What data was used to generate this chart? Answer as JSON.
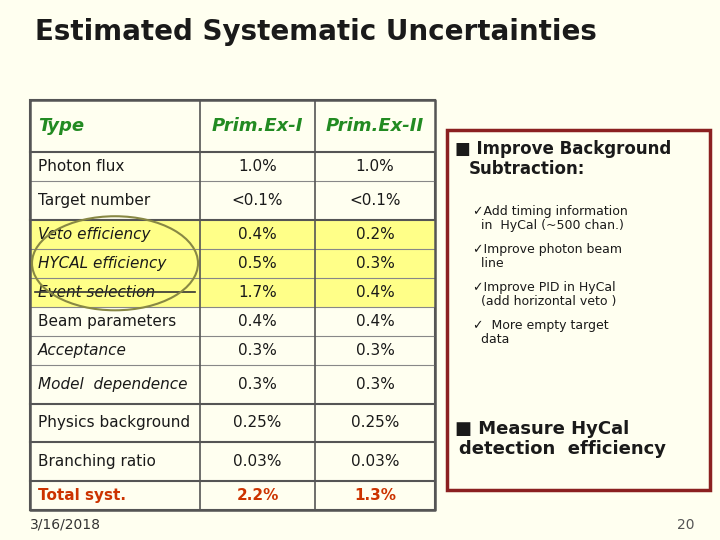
{
  "title": "Estimated Systematic Uncertainties",
  "background_color": "#fffff0",
  "title_color": "#1a1a1a",
  "title_fontsize": 18,
  "table": {
    "headers": [
      "Type",
      "Prim.Ex-I",
      "Prim.Ex-II"
    ],
    "header_color": "#228B22",
    "header_bg": "#fffff0",
    "rows": [
      {
        "type": "Photon flux",
        "ex1": "1.0%",
        "ex2": "1.0%",
        "bg": "#fffff0",
        "strikethrough": false,
        "type_color": "#1a1a1a",
        "italic": false
      },
      {
        "type": "Target number",
        "ex1": "<0.1%",
        "ex2": "<0.1%",
        "bg": "#fffff0",
        "strikethrough": false,
        "type_color": "#1a1a1a",
        "italic": false
      },
      {
        "type": "Veto efficiency",
        "ex1": "0.4%",
        "ex2": "0.2%",
        "bg": "#ffff88",
        "strikethrough": false,
        "type_color": "#1a1a1a",
        "italic": true
      },
      {
        "type": "HYCAL efficiency",
        "ex1": "0.5%",
        "ex2": "0.3%",
        "bg": "#ffff88",
        "strikethrough": false,
        "type_color": "#1a1a1a",
        "italic": true
      },
      {
        "type": "Event selection",
        "ex1": "1.7%",
        "ex2": "0.4%",
        "bg": "#ffff88",
        "strikethrough": true,
        "type_color": "#1a1a1a",
        "italic": true
      },
      {
        "type": "Beam parameters",
        "ex1": "0.4%",
        "ex2": "0.4%",
        "bg": "#fffff0",
        "strikethrough": false,
        "type_color": "#1a1a1a",
        "italic": false
      },
      {
        "type": "Acceptance",
        "ex1": "0.3%",
        "ex2": "0.3%",
        "bg": "#fffff0",
        "strikethrough": false,
        "type_color": "#1a1a1a",
        "italic": true
      },
      {
        "type": "Model  dependence",
        "ex1": "0.3%",
        "ex2": "0.3%",
        "bg": "#fffff0",
        "strikethrough": false,
        "type_color": "#1a1a1a",
        "italic": true
      },
      {
        "type": "Physics background",
        "ex1": "0.25%",
        "ex2": "0.25%",
        "bg": "#fffff0",
        "strikethrough": false,
        "type_color": "#1a1a1a",
        "italic": false
      },
      {
        "type": "Branching ratio",
        "ex1": "0.03%",
        "ex2": "0.03%",
        "bg": "#fffff0",
        "strikethrough": false,
        "type_color": "#1a1a1a",
        "italic": false
      },
      {
        "type": "Total syst.",
        "ex1": "2.2%",
        "ex2": "1.3%",
        "bg": "#fffff0",
        "strikethrough": false,
        "type_color": "#cc3300",
        "italic": false
      }
    ],
    "total_ex1_color": "#cc3300",
    "total_ex2_color": "#cc3300",
    "thick_sep_after": [
      1,
      7,
      8,
      9
    ],
    "group_sep_after": [
      4
    ]
  },
  "right_box": {
    "bg": "#fffff0",
    "border_color": "#8B2020",
    "text_color": "#1a1a1a"
  },
  "footer_date": "3/16/2018",
  "footer_page": "20"
}
